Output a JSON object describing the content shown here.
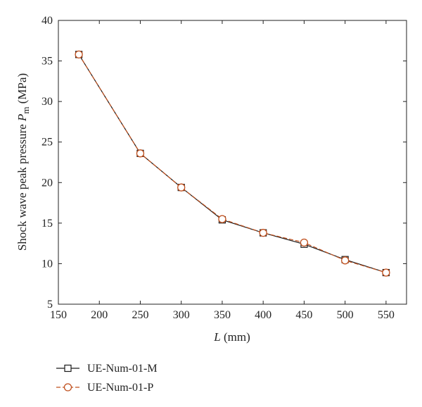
{
  "chart_data": {
    "type": "line",
    "xlabel": {
      "var": "L",
      "unit": " (mm)"
    },
    "ylabel": {
      "prefix": "Shock wave peak pressure ",
      "var": "P",
      "sub": "m",
      "unit": " (MPa)"
    },
    "xlim": [
      150,
      575
    ],
    "ylim": [
      5,
      40
    ],
    "xticks": [
      150,
      200,
      250,
      300,
      350,
      400,
      450,
      500,
      550
    ],
    "yticks": [
      5,
      10,
      15,
      20,
      25,
      30,
      35,
      40
    ],
    "x": [
      175,
      250,
      300,
      350,
      400,
      450,
      500,
      550
    ],
    "series": [
      {
        "name": "UE-Num-01-M",
        "marker": "square",
        "dash": "solid",
        "color": "#1a1a1a",
        "values": [
          35.8,
          23.6,
          19.4,
          15.4,
          13.8,
          12.4,
          10.5,
          8.9
        ]
      },
      {
        "name": "UE-Num-01-P",
        "marker": "circle",
        "dash": "dashed",
        "color": "#c0501e",
        "values": [
          35.8,
          23.6,
          19.4,
          15.5,
          13.8,
          12.6,
          10.4,
          8.9
        ]
      }
    ],
    "legend_position": "bottom-left",
    "grid": false
  }
}
